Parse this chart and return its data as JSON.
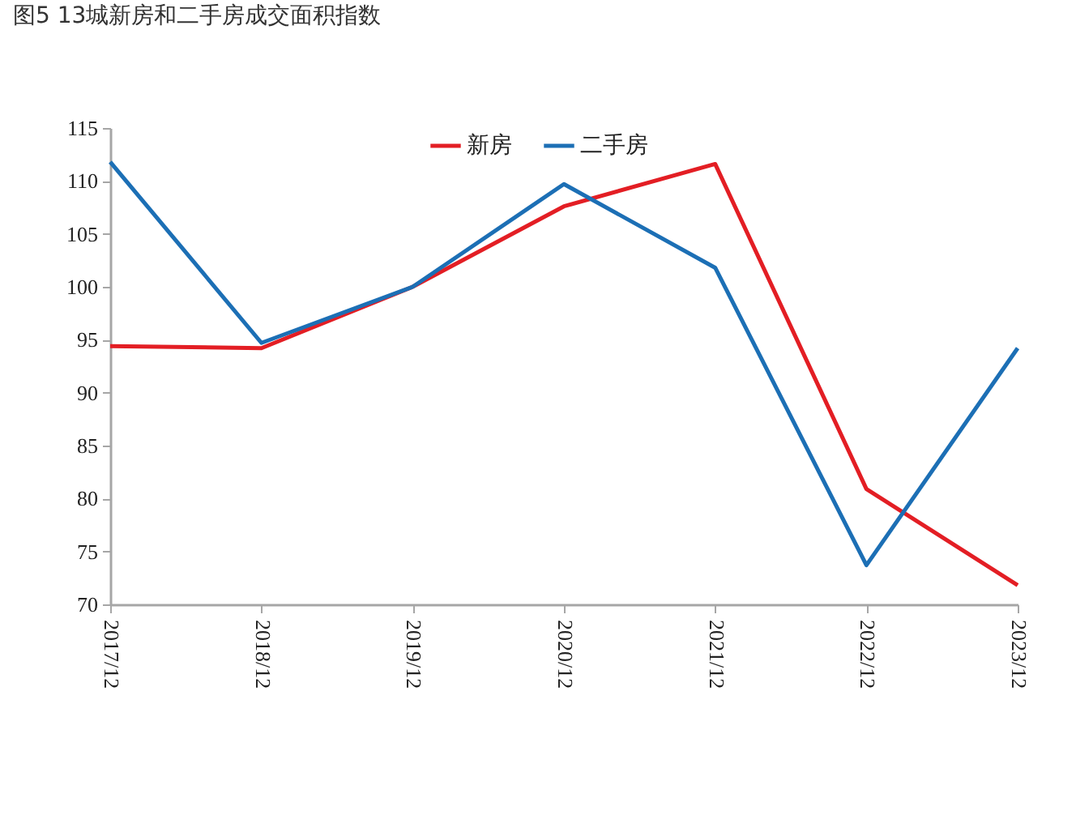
{
  "chart_data": {
    "type": "line",
    "title": "图5 13城新房和二手房成交面积指数",
    "categories": [
      "2017/12",
      "2018/12",
      "2019/12",
      "2020/12",
      "2021/12",
      "2022/12",
      "2023/12"
    ],
    "series": [
      {
        "name": "新房",
        "color": "#e31e24",
        "values": [
          94.4,
          94.2,
          100,
          107.6,
          111.6,
          80.9,
          71.8
        ]
      },
      {
        "name": "二手房",
        "color": "#1c6fb5",
        "values": [
          111.8,
          94.7,
          100,
          109.7,
          101.8,
          73.7,
          94.2
        ]
      }
    ],
    "ylim": [
      70,
      115
    ],
    "yticks": [
      70,
      75,
      80,
      85,
      90,
      95,
      100,
      105,
      110,
      115
    ],
    "grid": false,
    "legend": "top",
    "marker": "none",
    "line_style": "solid"
  }
}
